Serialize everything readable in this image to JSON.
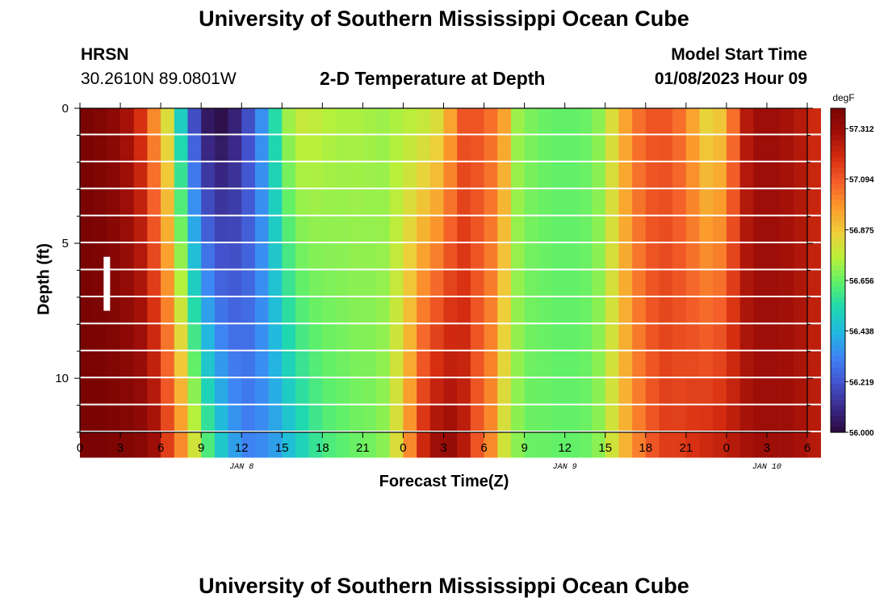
{
  "page": {
    "title": "University of Southern Mississippi Ocean Cube",
    "footer_title": "University of Southern Mississippi Ocean Cube"
  },
  "header": {
    "station": "HRSN",
    "coords": "30.2610N  89.0801W",
    "plot_title": "2-D Temperature at Depth",
    "start_label": "Model Start Time",
    "start_value": "01/08/2023 Hour 09"
  },
  "chart_data": {
    "type": "heatmap",
    "title": "2-D Temperature at Depth",
    "xlabel": "Forecast Time(Z)",
    "ylabel": "Depth (ft)",
    "x_hours": [
      0,
      1,
      2,
      3,
      4,
      5,
      6,
      7,
      8,
      9,
      10,
      11,
      12,
      13,
      14,
      15,
      16,
      17,
      18,
      19,
      20,
      21,
      22,
      23,
      24,
      25,
      26,
      27,
      28,
      29,
      30,
      31,
      32,
      33,
      34,
      35,
      36,
      37,
      38,
      39,
      40,
      41,
      42,
      43,
      44,
      45,
      46,
      47,
      48,
      49,
      50,
      51,
      52,
      53,
      54
    ],
    "x_range_hours": [
      0,
      54
    ],
    "x_ticks": [
      "0",
      "3",
      "6",
      "9",
      "12",
      "15",
      "18",
      "21",
      "0",
      "3",
      "6",
      "9",
      "12",
      "15",
      "18",
      "21",
      "0",
      "3",
      "6"
    ],
    "x_day_labels": [
      {
        "hour": 12,
        "label": "JAN 8"
      },
      {
        "hour": 36,
        "label": "JAN 9"
      },
      {
        "hour": 51,
        "label": "JAN 10"
      }
    ],
    "depth_ft": [
      0,
      1,
      2,
      3,
      4,
      5,
      6,
      7,
      8,
      9,
      10,
      11,
      12
    ],
    "y_ticks": [
      "0",
      "5",
      "10"
    ],
    "y_range_ft": [
      0,
      12
    ],
    "color_unit": "degF",
    "color_ticks": [
      "57.312",
      "57.094",
      "56.875",
      "56.656",
      "56.438",
      "56.219",
      "56.000"
    ],
    "color_range": [
      56.0,
      57.4
    ],
    "values_surface": [
      57.4,
      57.38,
      57.35,
      57.28,
      57.18,
      57.0,
      56.82,
      56.5,
      56.2,
      56.05,
      56.02,
      56.08,
      56.2,
      56.35,
      56.55,
      56.72,
      56.78,
      56.77,
      56.75,
      56.74,
      56.74,
      56.73,
      56.72,
      56.74,
      56.76,
      56.78,
      56.82,
      56.95,
      57.1,
      57.1,
      57.05,
      56.95,
      56.72,
      56.68,
      56.66,
      56.65,
      56.65,
      56.66,
      56.7,
      56.82,
      56.95,
      57.05,
      57.1,
      57.1,
      57.05,
      56.95,
      56.85,
      56.88,
      57.05,
      57.25,
      57.3,
      57.3,
      57.28,
      57.25,
      57.2
    ],
    "values_bottom": [
      57.4,
      57.4,
      57.39,
      57.38,
      57.36,
      57.3,
      57.15,
      57.0,
      56.8,
      56.62,
      56.48,
      56.38,
      56.32,
      56.34,
      56.38,
      56.45,
      56.52,
      56.58,
      56.62,
      56.64,
      56.66,
      56.67,
      56.7,
      56.82,
      57.0,
      57.2,
      57.3,
      57.32,
      57.25,
      57.1,
      57.0,
      56.8,
      56.7,
      56.66,
      56.66,
      56.65,
      56.65,
      56.66,
      56.7,
      56.8,
      56.92,
      57.02,
      57.1,
      57.15,
      57.15,
      57.18,
      57.2,
      57.22,
      57.25,
      57.28,
      57.3,
      57.3,
      57.3,
      57.28,
      57.25
    ],
    "marker": {
      "hour": 2,
      "depth_from_ft": 5.5,
      "depth_to_ft": 7.5,
      "color": "#ffffff"
    },
    "colormap": [
      "#2b0a3d",
      "#3a2a8a",
      "#4354cf",
      "#3f83f5",
      "#22b8e0",
      "#1ed8b0",
      "#5ef06a",
      "#b8f03a",
      "#eecf3a",
      "#fb9b2c",
      "#f4602a",
      "#d52d10",
      "#a00f08",
      "#7a0403"
    ]
  }
}
